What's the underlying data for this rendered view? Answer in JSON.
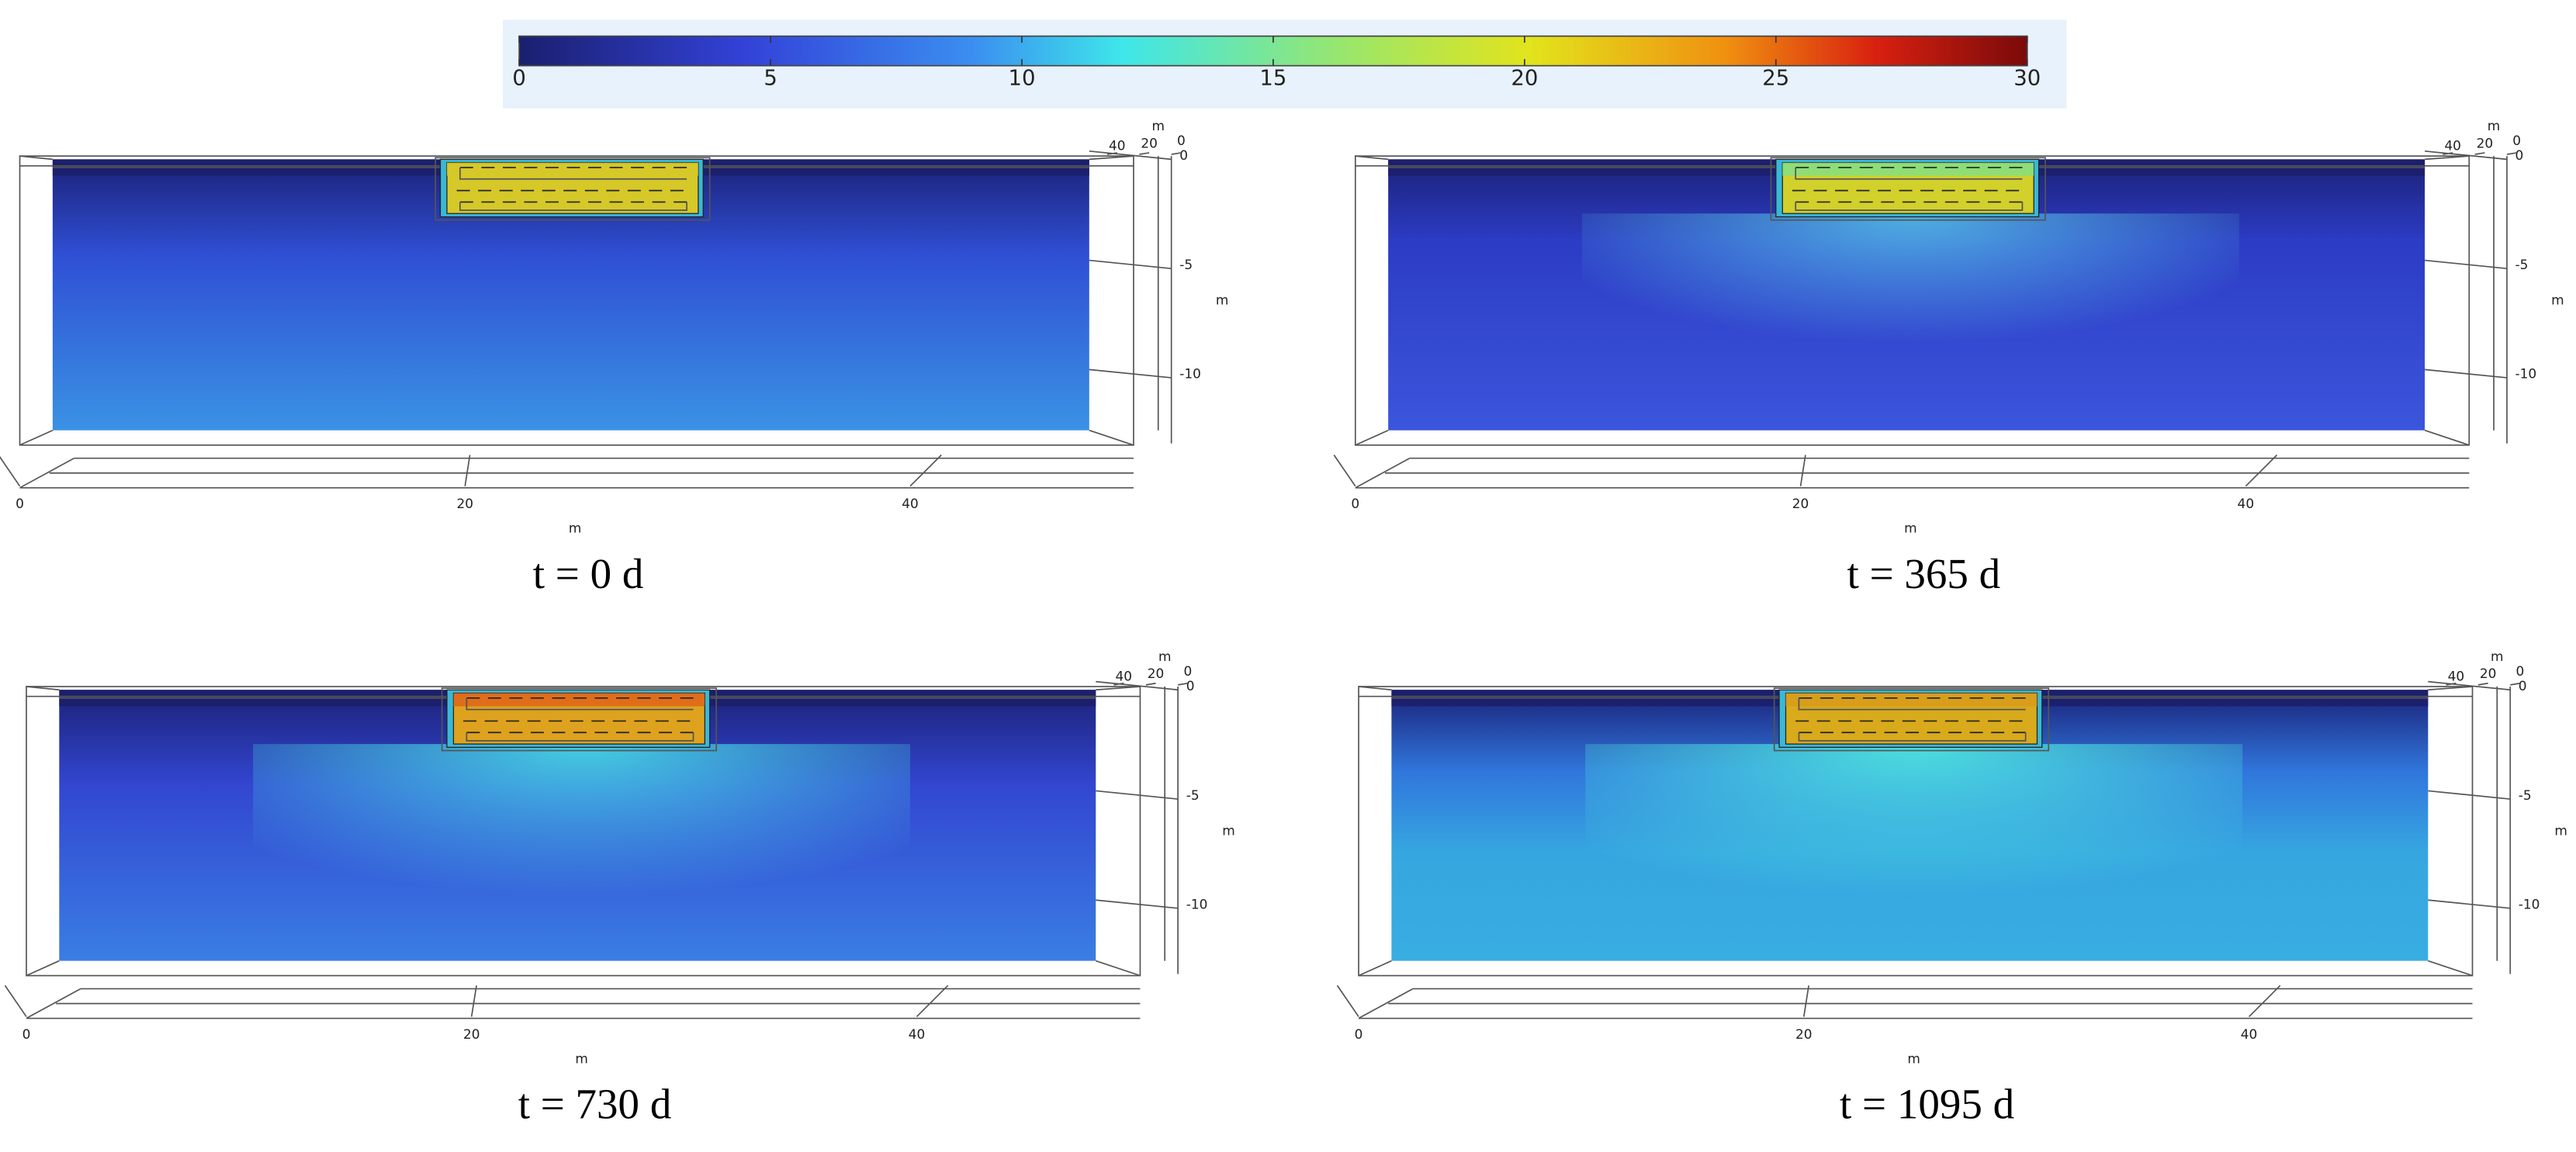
{
  "colorbar": {
    "lim": [
      0,
      30
    ],
    "ticks": [
      0,
      5,
      10,
      15,
      20,
      25,
      30
    ]
  },
  "panels": [
    {
      "caption": "t = 0 d",
      "x_axis": {
        "label": "m",
        "ticks": [
          0,
          20,
          40
        ]
      },
      "y_axis": {
        "label": "m",
        "ticks": [
          40,
          20,
          0
        ]
      },
      "z_axis": {
        "label": "m",
        "ticks": [
          0,
          -5,
          -10
        ]
      }
    },
    {
      "caption": "t = 365 d",
      "x_axis": {
        "label": "m",
        "ticks": [
          0,
          20,
          40
        ]
      },
      "y_axis": {
        "label": "m",
        "ticks": [
          40,
          20,
          0
        ]
      },
      "z_axis": {
        "label": "m",
        "ticks": [
          0,
          -5,
          -10
        ]
      }
    },
    {
      "caption": "t = 730 d",
      "x_axis": {
        "label": "m",
        "ticks": [
          0,
          20,
          40
        ]
      },
      "y_axis": {
        "label": "m",
        "ticks": [
          40,
          20,
          0
        ]
      },
      "z_axis": {
        "label": "m",
        "ticks": [
          0,
          -5,
          -10
        ]
      }
    },
    {
      "caption": "t = 1095 d",
      "x_axis": {
        "label": "m",
        "ticks": [
          0,
          20,
          40
        ]
      },
      "y_axis": {
        "label": "m",
        "ticks": [
          40,
          20,
          0
        ]
      },
      "z_axis": {
        "label": "m",
        "ticks": [
          0,
          -5,
          -10
        ]
      }
    }
  ]
}
